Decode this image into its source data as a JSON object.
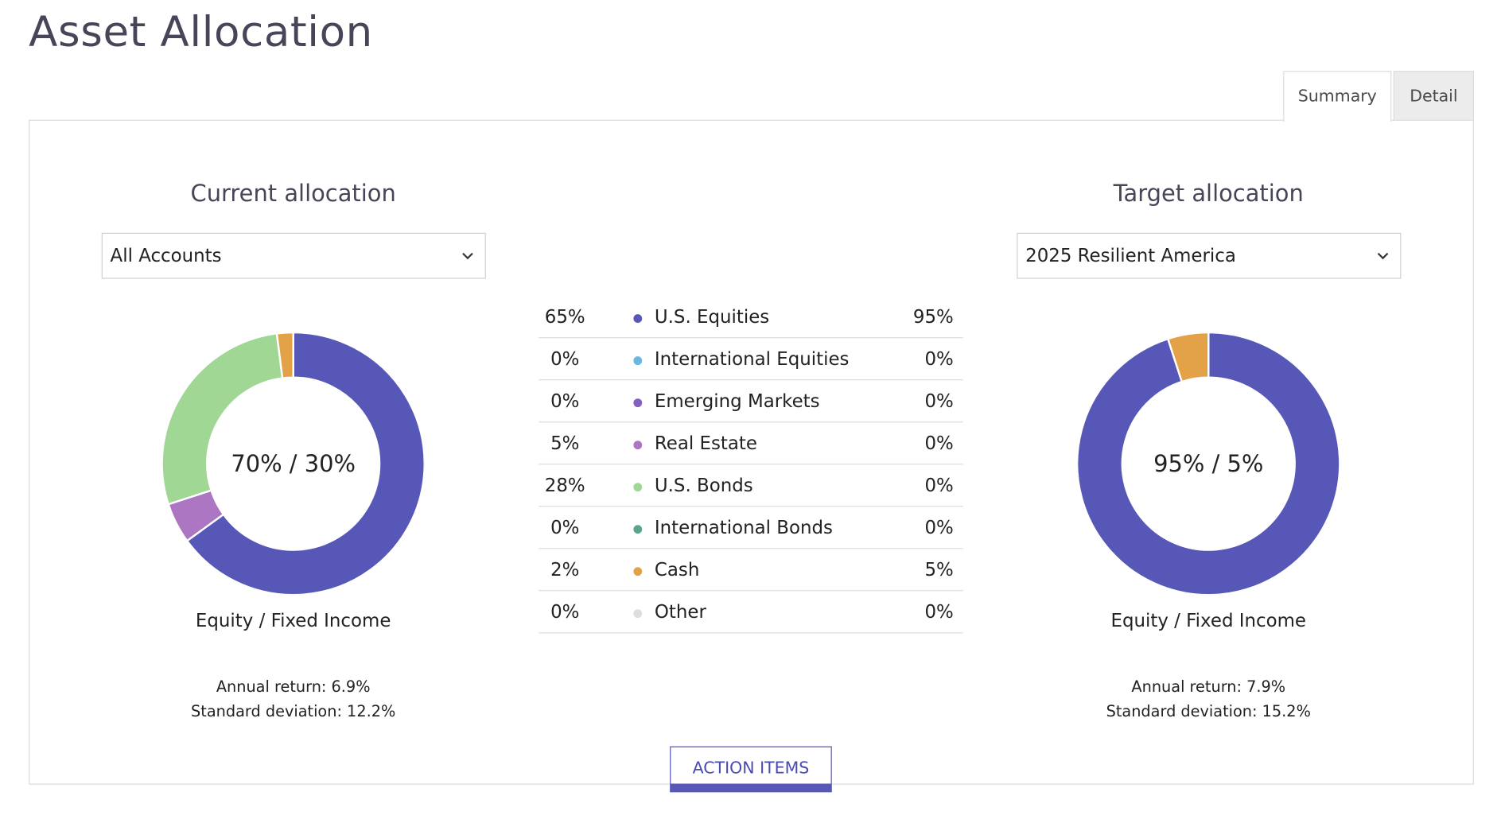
{
  "page": {
    "title": "Asset Allocation"
  },
  "tabs": [
    {
      "label": "Summary",
      "active": true
    },
    {
      "label": "Detail",
      "active": false
    }
  ],
  "current": {
    "heading": "Current allocation",
    "select_value": "All Accounts",
    "center_label": "70% / 30%",
    "split_label": "Equity / Fixed Income",
    "annual_return": "Annual return: 6.9%",
    "std_dev": "Standard deviation: 12.2%"
  },
  "target": {
    "heading": "Target allocation",
    "select_value": "2025 Resilient America",
    "center_label": "95% / 5%",
    "split_label": "Equity / Fixed Income",
    "annual_return": "Annual return: 7.9%",
    "std_dev": "Standard deviation: 15.2%"
  },
  "legend": [
    {
      "current": "65%",
      "name": "U.S. Equities",
      "target": "95%",
      "color": "#5757b8"
    },
    {
      "current": "0%",
      "name": "International Equities",
      "target": "0%",
      "color": "#6ab7e3"
    },
    {
      "current": "0%",
      "name": "Emerging Markets",
      "target": "0%",
      "color": "#8461bd"
    },
    {
      "current": "5%",
      "name": "Real Estate",
      "target": "0%",
      "color": "#ad76c2"
    },
    {
      "current": "28%",
      "name": "U.S. Bonds",
      "target": "0%",
      "color": "#a0d795"
    },
    {
      "current": "0%",
      "name": "International Bonds",
      "target": "0%",
      "color": "#5aa68a"
    },
    {
      "current": "2%",
      "name": "Cash",
      "target": "5%",
      "color": "#e4a248"
    },
    {
      "current": "0%",
      "name": "Other",
      "target": "0%",
      "color": "#dddddd"
    }
  ],
  "chart_data": [
    {
      "type": "pie",
      "title": "Current allocation",
      "categories": [
        "U.S. Equities",
        "Real Estate",
        "U.S. Bonds",
        "Cash"
      ],
      "values": [
        65,
        5,
        28,
        2
      ],
      "colors": [
        "#5757b8",
        "#ad76c2",
        "#a0d795",
        "#e4a248"
      ]
    },
    {
      "type": "pie",
      "title": "Target allocation",
      "categories": [
        "U.S. Equities",
        "Cash"
      ],
      "values": [
        95,
        5
      ],
      "colors": [
        "#5757b8",
        "#e4a248"
      ]
    }
  ],
  "actions": {
    "action_items_label": "ACTION ITEMS"
  }
}
